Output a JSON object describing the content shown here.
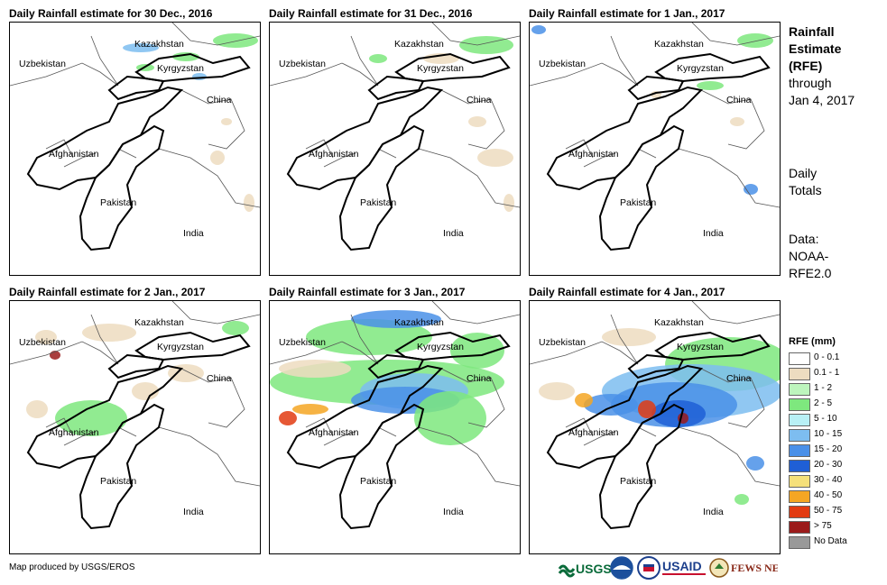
{
  "panels": [
    {
      "title": "Daily Rainfall estimate for 30 Dec., 2016"
    },
    {
      "title": "Daily Rainfall estimate for 31 Dec., 2016"
    },
    {
      "title": "Daily Rainfall estimate for 1 Jan., 2017"
    },
    {
      "title": "Daily Rainfall estimate for 2 Jan., 2017"
    },
    {
      "title": "Daily Rainfall estimate for 3 Jan., 2017"
    },
    {
      "title": "Daily Rainfall estimate for 4 Jan., 2017"
    }
  ],
  "labels": {
    "kazakhstan": "Kazakhstan",
    "uzbekistan": "Uzbekistan",
    "kyrgyzstan": "Kyrgyzstan",
    "china": "China",
    "afghanistan": "Afghanistan",
    "pakistan": "Pakistan",
    "india": "India"
  },
  "side": {
    "title_lines": [
      "Rainfall",
      "Estimate",
      "(RFE)"
    ],
    "through_lines": [
      "through",
      "Jan 4, 2017"
    ],
    "totals_lines": [
      "Daily",
      "Totals"
    ],
    "data_lines": [
      "Data:",
      "NOAA-",
      "RFE2.0"
    ]
  },
  "legend": {
    "title": "RFE (mm)",
    "items": [
      {
        "label": "0 - 0.1",
        "color": "#ffffff"
      },
      {
        "label": "0.1 - 1",
        "color": "#eddcc0"
      },
      {
        "label": "1 - 2",
        "color": "#bdf5bd"
      },
      {
        "label": "2 - 5",
        "color": "#7ee87e"
      },
      {
        "label": "5 - 10",
        "color": "#b8f0f5"
      },
      {
        "label": "10 - 15",
        "color": "#7dbdf0"
      },
      {
        "label": "15 - 20",
        "color": "#4a90e8"
      },
      {
        "label": "20 - 30",
        "color": "#1f5fd6"
      },
      {
        "label": "30 - 40",
        "color": "#f5e07a"
      },
      {
        "label": "40 - 50",
        "color": "#f5a623"
      },
      {
        "label": "50 - 75",
        "color": "#e23b12"
      },
      {
        "label": "> 75",
        "color": "#9b1b1b"
      },
      {
        "label": "No Data",
        "color": "#999999"
      }
    ]
  },
  "footer": {
    "credit": "Map produced by USGS/EROS"
  },
  "logos": {
    "usgs": "USGS",
    "usaid": "USAID",
    "fewsnet": "FEWS NET"
  }
}
